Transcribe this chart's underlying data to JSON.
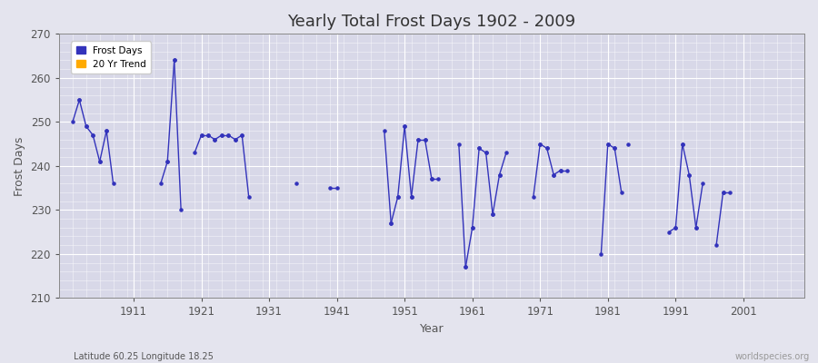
{
  "title": "Yearly Total Frost Days 1902 - 2009",
  "xlabel": "Year",
  "ylabel": "Frost Days",
  "subtitle": "Latitude 60.25 Longitude 18.25",
  "watermark": "worldspecies.org",
  "ylim": [
    210,
    270
  ],
  "yticks": [
    210,
    220,
    230,
    240,
    250,
    260,
    270
  ],
  "xticks": [
    1911,
    1921,
    1931,
    1941,
    1951,
    1961,
    1971,
    1981,
    1991,
    2001
  ],
  "xlim": [
    1900,
    2010
  ],
  "line_color": "#3333bb",
  "trend_color": "#ffaa00",
  "bg_color": "#e4e4ee",
  "plot_bg": "#d8d8e8",
  "legend_entries": [
    "Frost Days",
    "20 Yr Trend"
  ],
  "legend_colors": [
    "#3333bb",
    "#ffaa00"
  ],
  "segments": [
    {
      "years": [
        1902,
        1903
      ],
      "values": [
        250,
        255
      ]
    },
    {
      "years": [
        1903,
        1904
      ],
      "values": [
        255,
        249
      ]
    },
    {
      "years": [
        1904,
        1905
      ],
      "values": [
        249,
        247
      ]
    },
    {
      "years": [
        1905,
        1906
      ],
      "values": [
        247,
        241
      ]
    },
    {
      "years": [
        1906,
        1907
      ],
      "values": [
        241,
        248
      ]
    },
    {
      "years": [
        1907,
        1908
      ],
      "values": [
        248,
        236
      ]
    },
    {
      "years": [
        1915,
        1916
      ],
      "values": [
        236,
        241
      ]
    },
    {
      "years": [
        1916,
        1917
      ],
      "values": [
        241,
        264
      ]
    },
    {
      "years": [
        1917,
        1918
      ],
      "values": [
        264,
        230
      ]
    },
    {
      "years": [
        1920,
        1921
      ],
      "values": [
        243,
        247
      ]
    },
    {
      "years": [
        1921,
        1922
      ],
      "values": [
        247,
        247
      ]
    },
    {
      "years": [
        1922,
        1923
      ],
      "values": [
        247,
        246
      ]
    },
    {
      "years": [
        1923,
        1924
      ],
      "values": [
        246,
        247
      ]
    },
    {
      "years": [
        1924,
        1925
      ],
      "values": [
        247,
        247
      ]
    },
    {
      "years": [
        1925,
        1926
      ],
      "values": [
        247,
        246
      ]
    },
    {
      "years": [
        1926,
        1927
      ],
      "values": [
        246,
        247
      ]
    },
    {
      "years": [
        1927,
        1928
      ],
      "values": [
        247,
        233
      ]
    },
    {
      "years": [
        1940,
        1941
      ],
      "values": [
        235,
        235
      ]
    },
    {
      "years": [
        1948,
        1949
      ],
      "values": [
        248,
        227
      ]
    },
    {
      "years": [
        1949,
        1950
      ],
      "values": [
        227,
        233
      ]
    },
    {
      "years": [
        1950,
        1951
      ],
      "values": [
        233,
        249
      ]
    },
    {
      "years": [
        1951,
        1952
      ],
      "values": [
        249,
        233
      ]
    },
    {
      "years": [
        1952,
        1953
      ],
      "values": [
        233,
        246
      ]
    },
    {
      "years": [
        1953,
        1954
      ],
      "values": [
        246,
        246
      ]
    },
    {
      "years": [
        1954,
        1955
      ],
      "values": [
        246,
        237
      ]
    },
    {
      "years": [
        1955,
        1956
      ],
      "values": [
        237,
        237
      ]
    },
    {
      "years": [
        1959,
        1960
      ],
      "values": [
        245,
        217
      ]
    },
    {
      "years": [
        1960,
        1961
      ],
      "values": [
        217,
        226
      ]
    },
    {
      "years": [
        1961,
        1962
      ],
      "values": [
        226,
        244
      ]
    },
    {
      "years": [
        1962,
        1963
      ],
      "values": [
        244,
        243
      ]
    },
    {
      "years": [
        1963,
        1964
      ],
      "values": [
        243,
        229
      ]
    },
    {
      "years": [
        1964,
        1965
      ],
      "values": [
        229,
        238
      ]
    },
    {
      "years": [
        1965,
        1966
      ],
      "values": [
        238,
        243
      ]
    },
    {
      "years": [
        1970,
        1971
      ],
      "values": [
        233,
        245
      ]
    },
    {
      "years": [
        1971,
        1972
      ],
      "values": [
        245,
        244
      ]
    },
    {
      "years": [
        1972,
        1973
      ],
      "values": [
        244,
        238
      ]
    },
    {
      "years": [
        1973,
        1974
      ],
      "values": [
        238,
        239
      ]
    },
    {
      "years": [
        1974,
        1975
      ],
      "values": [
        239,
        239
      ]
    },
    {
      "years": [
        1980,
        1981
      ],
      "values": [
        220,
        245
      ]
    },
    {
      "years": [
        1981,
        1982
      ],
      "values": [
        245,
        244
      ]
    },
    {
      "years": [
        1982,
        1983
      ],
      "values": [
        244,
        234
      ]
    },
    {
      "years": [
        1990,
        1991
      ],
      "values": [
        225,
        226
      ]
    },
    {
      "years": [
        1991,
        1992
      ],
      "values": [
        226,
        245
      ]
    },
    {
      "years": [
        1992,
        1993
      ],
      "values": [
        245,
        238
      ]
    },
    {
      "years": [
        1993,
        1994
      ],
      "values": [
        238,
        226
      ]
    },
    {
      "years": [
        1994,
        1995
      ],
      "values": [
        226,
        236
      ]
    },
    {
      "years": [
        1997,
        1998
      ],
      "values": [
        222,
        234
      ]
    },
    {
      "years": [
        1998,
        1999
      ],
      "values": [
        234,
        234
      ]
    }
  ],
  "isolated": [
    {
      "year": 1935,
      "value": 236
    },
    {
      "year": 1984,
      "value": 245
    }
  ]
}
